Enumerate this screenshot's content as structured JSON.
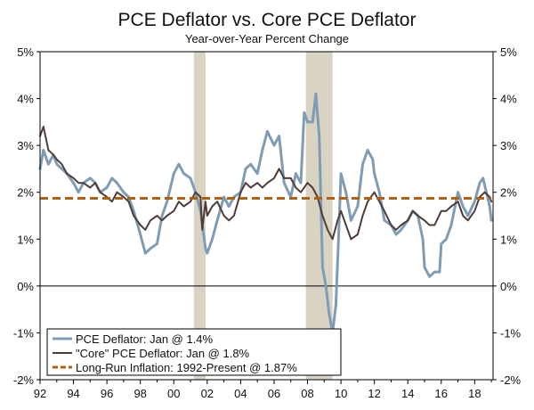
{
  "chart_data": {
    "type": "line",
    "title": "PCE Deflator vs. Core PCE Deflator",
    "subtitle": "Year-over-Year Percent Change",
    "xlabel": "",
    "ylabel": "",
    "x_range": [
      1992.0,
      2019.1
    ],
    "ylim": [
      -2,
      5
    ],
    "y_ticks": [
      5,
      4,
      3,
      2,
      1,
      0,
      -1,
      -2
    ],
    "y_tick_labels": [
      "5%",
      "4%",
      "3%",
      "2%",
      "1%",
      "0%",
      "-1%",
      "-2%"
    ],
    "x_ticks": [
      1992,
      1994,
      1996,
      1998,
      2000,
      2002,
      2004,
      2006,
      2008,
      2010,
      2012,
      2014,
      2016,
      2018
    ],
    "x_tick_labels": [
      "92",
      "94",
      "96",
      "98",
      "00",
      "02",
      "04",
      "06",
      "08",
      "10",
      "12",
      "14",
      "16",
      "18"
    ],
    "recessions": [
      [
        2001.2,
        2001.9
      ],
      [
        2007.9,
        2009.5
      ]
    ],
    "legend_position": "bottom-left",
    "series": [
      {
        "name": "PCE Deflator: Jan @ 1.4%",
        "color": "#7f9cb5",
        "style": "solid",
        "points": [
          [
            1992.0,
            2.5
          ],
          [
            1992.2,
            2.9
          ],
          [
            1992.5,
            2.6
          ],
          [
            1992.8,
            2.8
          ],
          [
            1993.0,
            2.6
          ],
          [
            1993.3,
            2.5
          ],
          [
            1993.6,
            2.4
          ],
          [
            1994.0,
            2.2
          ],
          [
            1994.3,
            2.0
          ],
          [
            1994.6,
            2.2
          ],
          [
            1995.0,
            2.3
          ],
          [
            1995.3,
            2.2
          ],
          [
            1995.6,
            2.0
          ],
          [
            1996.0,
            2.1
          ],
          [
            1996.3,
            2.3
          ],
          [
            1996.6,
            2.2
          ],
          [
            1997.0,
            2.0
          ],
          [
            1997.3,
            1.9
          ],
          [
            1997.6,
            1.6
          ],
          [
            1998.0,
            1.1
          ],
          [
            1998.3,
            0.7
          ],
          [
            1998.6,
            0.8
          ],
          [
            1999.0,
            0.9
          ],
          [
            1999.3,
            1.5
          ],
          [
            1999.6,
            1.8
          ],
          [
            2000.0,
            2.4
          ],
          [
            2000.3,
            2.6
          ],
          [
            2000.6,
            2.4
          ],
          [
            2001.0,
            2.3
          ],
          [
            2001.3,
            2.0
          ],
          [
            2001.6,
            1.6
          ],
          [
            2001.9,
            0.8
          ],
          [
            2002.0,
            0.7
          ],
          [
            2002.3,
            1.0
          ],
          [
            2002.6,
            1.4
          ],
          [
            2003.0,
            1.9
          ],
          [
            2003.3,
            1.7
          ],
          [
            2003.6,
            1.9
          ],
          [
            2004.0,
            2.0
          ],
          [
            2004.3,
            2.5
          ],
          [
            2004.6,
            2.6
          ],
          [
            2005.0,
            2.4
          ],
          [
            2005.3,
            2.9
          ],
          [
            2005.6,
            3.3
          ],
          [
            2006.0,
            3.0
          ],
          [
            2006.3,
            3.2
          ],
          [
            2006.6,
            2.2
          ],
          [
            2007.0,
            1.9
          ],
          [
            2007.3,
            2.4
          ],
          [
            2007.6,
            2.2
          ],
          [
            2007.8,
            3.7
          ],
          [
            2008.0,
            3.5
          ],
          [
            2008.3,
            3.5
          ],
          [
            2008.5,
            4.1
          ],
          [
            2008.7,
            3.2
          ],
          [
            2008.9,
            0.4
          ],
          [
            2009.1,
            0.0
          ],
          [
            2009.3,
            -0.6
          ],
          [
            2009.5,
            -1.0
          ],
          [
            2009.7,
            -0.4
          ],
          [
            2009.9,
            1.4
          ],
          [
            2010.0,
            2.4
          ],
          [
            2010.3,
            2.0
          ],
          [
            2010.6,
            1.4
          ],
          [
            2011.0,
            1.7
          ],
          [
            2011.3,
            2.6
          ],
          [
            2011.6,
            2.9
          ],
          [
            2011.9,
            2.7
          ],
          [
            2012.0,
            2.4
          ],
          [
            2012.3,
            2.0
          ],
          [
            2012.6,
            1.4
          ],
          [
            2013.0,
            1.3
          ],
          [
            2013.3,
            1.1
          ],
          [
            2013.6,
            1.2
          ],
          [
            2014.0,
            1.4
          ],
          [
            2014.3,
            1.6
          ],
          [
            2014.6,
            1.5
          ],
          [
            2014.9,
            1.0
          ],
          [
            2015.0,
            0.4
          ],
          [
            2015.3,
            0.2
          ],
          [
            2015.6,
            0.3
          ],
          [
            2015.9,
            0.3
          ],
          [
            2016.0,
            0.9
          ],
          [
            2016.3,
            1.0
          ],
          [
            2016.6,
            1.3
          ],
          [
            2017.0,
            2.0
          ],
          [
            2017.3,
            1.7
          ],
          [
            2017.6,
            1.5
          ],
          [
            2018.0,
            1.8
          ],
          [
            2018.3,
            2.2
          ],
          [
            2018.5,
            2.3
          ],
          [
            2018.7,
            2.0
          ],
          [
            2018.9,
            1.7
          ],
          [
            2019.0,
            1.4
          ]
        ]
      },
      {
        "name": "\"Core\" PCE Deflator: Jan @ 1.8%",
        "color": "#4e3d36",
        "style": "solid",
        "points": [
          [
            1992.0,
            3.2
          ],
          [
            1992.2,
            3.4
          ],
          [
            1992.5,
            2.9
          ],
          [
            1992.8,
            2.8
          ],
          [
            1993.0,
            2.7
          ],
          [
            1993.3,
            2.6
          ],
          [
            1993.6,
            2.4
          ],
          [
            1994.0,
            2.3
          ],
          [
            1994.3,
            2.2
          ],
          [
            1994.6,
            2.2
          ],
          [
            1995.0,
            2.1
          ],
          [
            1995.3,
            2.2
          ],
          [
            1995.6,
            2.0
          ],
          [
            1996.0,
            1.9
          ],
          [
            1996.3,
            1.8
          ],
          [
            1996.6,
            2.0
          ],
          [
            1997.0,
            1.9
          ],
          [
            1997.3,
            1.8
          ],
          [
            1997.6,
            1.5
          ],
          [
            1998.0,
            1.3
          ],
          [
            1998.3,
            1.2
          ],
          [
            1998.6,
            1.4
          ],
          [
            1999.0,
            1.5
          ],
          [
            1999.3,
            1.4
          ],
          [
            1999.6,
            1.5
          ],
          [
            2000.0,
            1.6
          ],
          [
            2000.3,
            1.8
          ],
          [
            2000.6,
            1.7
          ],
          [
            2001.0,
            1.8
          ],
          [
            2001.3,
            2.0
          ],
          [
            2001.6,
            1.9
          ],
          [
            2001.7,
            1.2
          ],
          [
            2001.9,
            1.8
          ],
          [
            2002.0,
            1.5
          ],
          [
            2002.3,
            1.7
          ],
          [
            2002.6,
            1.8
          ],
          [
            2003.0,
            1.5
          ],
          [
            2003.3,
            1.4
          ],
          [
            2003.6,
            1.5
          ],
          [
            2004.0,
            2.0
          ],
          [
            2004.3,
            2.2
          ],
          [
            2004.6,
            2.1
          ],
          [
            2005.0,
            2.2
          ],
          [
            2005.3,
            2.1
          ],
          [
            2005.6,
            2.2
          ],
          [
            2006.0,
            2.3
          ],
          [
            2006.3,
            2.5
          ],
          [
            2006.6,
            2.3
          ],
          [
            2007.0,
            2.3
          ],
          [
            2007.3,
            2.1
          ],
          [
            2007.6,
            2.0
          ],
          [
            2008.0,
            2.2
          ],
          [
            2008.3,
            2.1
          ],
          [
            2008.6,
            1.9
          ],
          [
            2008.9,
            1.5
          ],
          [
            2009.2,
            1.2
          ],
          [
            2009.5,
            1.0
          ],
          [
            2009.8,
            1.4
          ],
          [
            2010.0,
            1.6
          ],
          [
            2010.3,
            1.3
          ],
          [
            2010.6,
            1.0
          ],
          [
            2011.0,
            1.1
          ],
          [
            2011.3,
            1.5
          ],
          [
            2011.6,
            1.8
          ],
          [
            2012.0,
            2.0
          ],
          [
            2012.3,
            1.8
          ],
          [
            2012.6,
            1.6
          ],
          [
            2013.0,
            1.3
          ],
          [
            2013.3,
            1.2
          ],
          [
            2013.6,
            1.3
          ],
          [
            2014.0,
            1.4
          ],
          [
            2014.3,
            1.6
          ],
          [
            2014.6,
            1.5
          ],
          [
            2015.0,
            1.4
          ],
          [
            2015.3,
            1.3
          ],
          [
            2015.6,
            1.3
          ],
          [
            2016.0,
            1.6
          ],
          [
            2016.3,
            1.6
          ],
          [
            2016.6,
            1.7
          ],
          [
            2017.0,
            1.8
          ],
          [
            2017.3,
            1.5
          ],
          [
            2017.6,
            1.4
          ],
          [
            2018.0,
            1.6
          ],
          [
            2018.3,
            1.9
          ],
          [
            2018.6,
            2.0
          ],
          [
            2018.9,
            1.9
          ],
          [
            2019.0,
            1.8
          ]
        ]
      },
      {
        "name": "Long-Run Inflation: 1992-Present @ 1.87%",
        "color": "#b15f10",
        "style": "dashed",
        "points": [
          [
            1992.0,
            1.87
          ],
          [
            2019.0,
            1.87
          ]
        ]
      }
    ]
  }
}
